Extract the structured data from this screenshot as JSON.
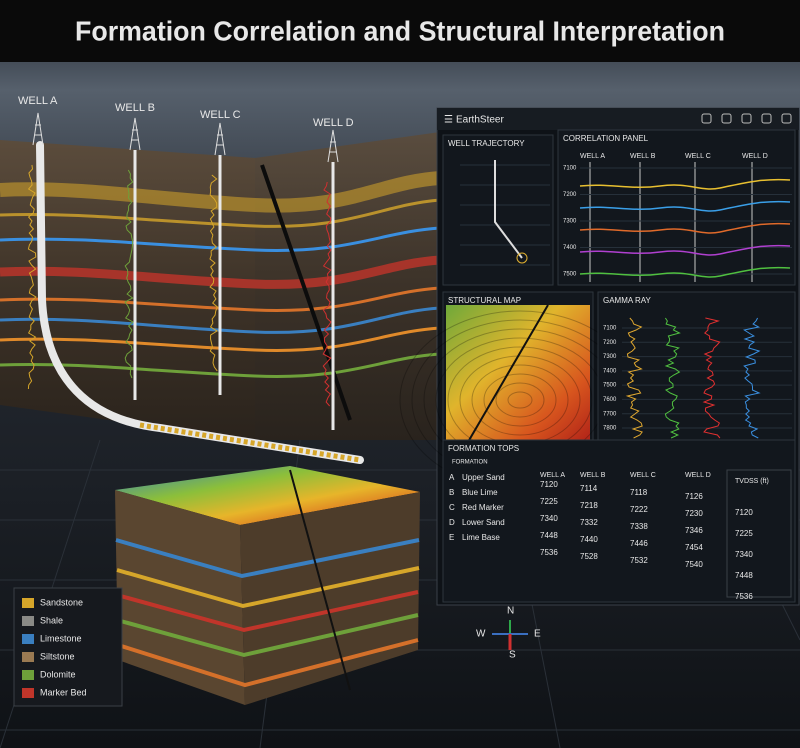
{
  "title": "Formation Correlation and Structural Interpretation",
  "wells": [
    "WELL A",
    "WELL B",
    "WELL C",
    "WELL D"
  ],
  "app": {
    "name": "EarthSteer",
    "well_trajectory": {
      "title": "WELL TRAJECTORY"
    },
    "correlation_panel": {
      "title": "CORRELATION PANEL",
      "wells": [
        "WELL A",
        "WELL B",
        "WELL C",
        "WELL D"
      ],
      "depth_ticks": [
        7100,
        7200,
        7300,
        7400,
        7500
      ]
    },
    "structural_map": {
      "title": "STRUCTURAL MAP"
    },
    "gamma_ray": {
      "title": "GAMMA RAY",
      "depth_ticks": [
        7100,
        7200,
        7300,
        7400,
        7500,
        7600,
        7700,
        7800
      ]
    },
    "formation_tops": {
      "title": "FORMATION TOPS",
      "columns": [
        "FORMATION",
        "WELL A",
        "WELL B",
        "WELL C",
        "WELL D",
        "TVDSS (ft)"
      ],
      "rows": [
        [
          "A",
          "Upper Sand",
          7120,
          7114,
          7118,
          7126,
          7120
        ],
        [
          "B",
          "Blue Lime",
          7225,
          7218,
          7222,
          7230,
          7225
        ],
        [
          "C",
          "Red Marker",
          7340,
          7332,
          7338,
          7346,
          7340
        ],
        [
          "D",
          "Lower Sand",
          7448,
          7440,
          7446,
          7454,
          7448
        ],
        [
          "E",
          "Lime Base",
          7536,
          7528,
          7532,
          7540,
          7536
        ]
      ]
    }
  },
  "legend": [
    {
      "label": "Sandstone",
      "color": "#d6a62a"
    },
    {
      "label": "Shale",
      "color": "#8a8a86"
    },
    {
      "label": "Limestone",
      "color": "#3a7fc0"
    },
    {
      "label": "Siltstone",
      "color": "#9a7a52"
    },
    {
      "label": "Dolomite",
      "color": "#6ea03a"
    },
    {
      "label": "Marker Bed",
      "color": "#c0352a"
    }
  ],
  "compass": {
    "n": "N",
    "e": "E",
    "s": "S",
    "w": "W"
  }
}
